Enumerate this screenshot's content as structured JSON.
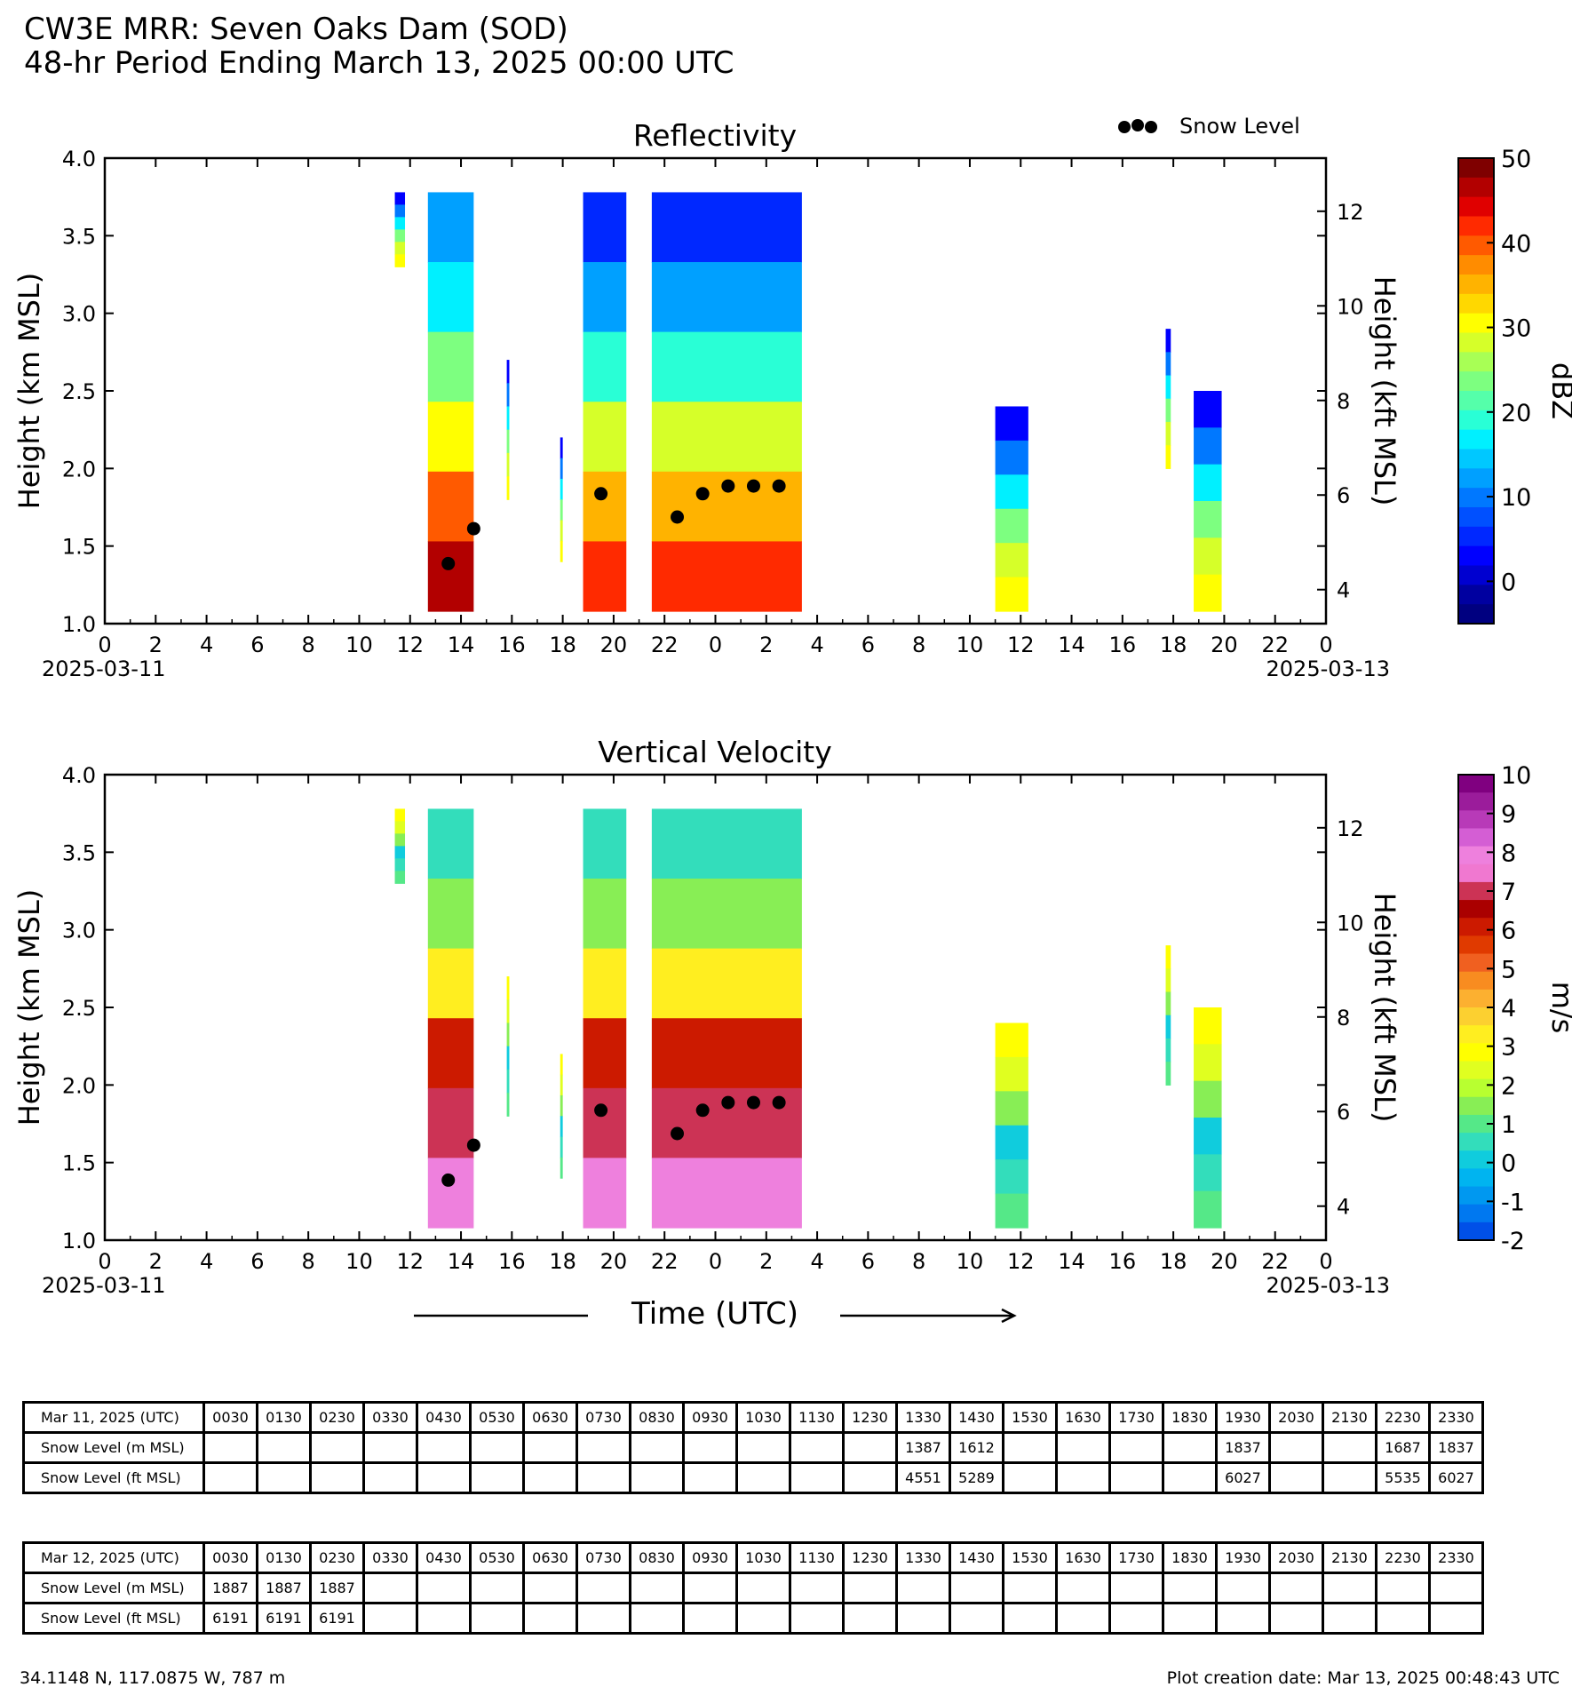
{
  "header": {
    "title_line1": "CW3E MRR: Seven Oaks Dam (SOD)",
    "title_line2": "48-hr Period Ending March 13, 2025 00:00 UTC"
  },
  "legend": {
    "snow_level_label": "Snow Level"
  },
  "x_axis": {
    "tick_labels": [
      "0",
      "2",
      "4",
      "6",
      "8",
      "10",
      "12",
      "14",
      "16",
      "18",
      "20",
      "22",
      "0",
      "2",
      "4",
      "6",
      "8",
      "10",
      "12",
      "14",
      "16",
      "18",
      "20",
      "22",
      "0"
    ],
    "start_date": "2025-03-11",
    "end_date": "2025-03-13",
    "label": "Time (UTC)"
  },
  "left_axis": {
    "label": "Height (km MSL)",
    "ticks": [
      "1.0",
      "1.5",
      "2.0",
      "2.5",
      "3.0",
      "3.5",
      "4.0"
    ]
  },
  "right_axis": {
    "label": "Height (kft MSL)",
    "ticks": [
      "4",
      "6",
      "8",
      "10",
      "12"
    ]
  },
  "colors": {
    "snow_dots": "#000000",
    "background": "#ffffff"
  },
  "chart_data": [
    {
      "type": "heatmap",
      "title": "Reflectivity",
      "ylabel": "Height (km MSL)",
      "ylabel_right": "Height (kft MSL)",
      "xlabel": "Time (UTC)",
      "ylim": [
        1.0,
        4.0
      ],
      "xlim_hours": [
        0,
        48
      ],
      "colorbar": {
        "label": "dBZ",
        "range": [
          -5,
          50
        ],
        "tick_labels": [
          "50",
          "40",
          "30",
          "20",
          "10",
          "0"
        ],
        "tick_values": [
          50,
          40,
          30,
          20,
          10,
          0
        ],
        "colors": [
          "#7f0000",
          "#b20000",
          "#e00000",
          "#ff2a00",
          "#ff5a00",
          "#ff8c00",
          "#ffb300",
          "#ffd800",
          "#ffff00",
          "#d6ff29",
          "#a8ff55",
          "#7dff80",
          "#55ffaa",
          "#29ffd6",
          "#00f0ff",
          "#00c8ff",
          "#00a0ff",
          "#0078ff",
          "#0050ff",
          "#0028ff",
          "#0000ff",
          "#0000d0",
          "#0000a0",
          "#000080"
        ]
      },
      "echo_regions": [
        {
          "t_start": 11.4,
          "t_end": 11.8,
          "top_km": 3.78,
          "bottom_km": 3.3,
          "intensity": "low"
        },
        {
          "t_start": 12.7,
          "t_end": 14.5,
          "top_km": 3.78,
          "bottom_km": 1.08,
          "intensity": "high"
        },
        {
          "t_start": 15.8,
          "t_end": 15.9,
          "top_km": 2.7,
          "bottom_km": 1.8,
          "intensity": "low"
        },
        {
          "t_start": 17.9,
          "t_end": 18.0,
          "top_km": 2.2,
          "bottom_km": 1.4,
          "intensity": "low"
        },
        {
          "t_start": 18.8,
          "t_end": 20.5,
          "top_km": 3.78,
          "bottom_km": 1.08,
          "intensity": "medium"
        },
        {
          "t_start": 21.5,
          "t_end": 27.4,
          "top_km": 3.78,
          "bottom_km": 1.08,
          "intensity": "medium"
        },
        {
          "t_start": 35.0,
          "t_end": 36.3,
          "top_km": 2.4,
          "bottom_km": 1.08,
          "intensity": "low"
        },
        {
          "t_start": 41.7,
          "t_end": 41.9,
          "top_km": 2.9,
          "bottom_km": 2.0,
          "intensity": "low"
        },
        {
          "t_start": 42.8,
          "t_end": 43.9,
          "top_km": 2.5,
          "bottom_km": 1.08,
          "intensity": "low"
        }
      ]
    },
    {
      "type": "heatmap",
      "title": "Vertical Velocity",
      "ylabel": "Height (km MSL)",
      "ylabel_right": "Height (kft MSL)",
      "xlabel": "Time (UTC)",
      "ylim": [
        1.0,
        4.0
      ],
      "xlim_hours": [
        0,
        48
      ],
      "colorbar": {
        "label": "m/s",
        "range": [
          -2,
          10
        ],
        "tick_labels": [
          "10",
          "9",
          "8",
          "7",
          "6",
          "5",
          "4",
          "3",
          "2",
          "1",
          "0",
          "-1",
          "-2"
        ],
        "tick_values": [
          10,
          9,
          8,
          7,
          6,
          5,
          4,
          3,
          2,
          1,
          0,
          -1,
          -2
        ],
        "colors": [
          "#800080",
          "#9b1c9b",
          "#b83ab8",
          "#d45ed4",
          "#ee80dd",
          "#f078d0",
          "#cc3355",
          "#aa0000",
          "#cc1a00",
          "#e03a00",
          "#f06020",
          "#f88c20",
          "#fcb030",
          "#fcd030",
          "#ffee20",
          "#ffff00",
          "#e0ff20",
          "#b8ff30",
          "#88ee55",
          "#55e888",
          "#33ddbb",
          "#10ccdd",
          "#00b4f0",
          "#0098f0",
          "#0078f0",
          "#0050e8"
        ]
      },
      "echo_regions": [
        {
          "t_start": 11.4,
          "t_end": 11.8,
          "top_km": 3.78,
          "bottom_km": 3.3,
          "intensity": "low"
        },
        {
          "t_start": 12.7,
          "t_end": 14.5,
          "top_km": 3.78,
          "bottom_km": 1.08,
          "intensity": "high"
        },
        {
          "t_start": 15.8,
          "t_end": 15.9,
          "top_km": 2.7,
          "bottom_km": 1.8,
          "intensity": "low"
        },
        {
          "t_start": 17.9,
          "t_end": 18.0,
          "top_km": 2.2,
          "bottom_km": 1.4,
          "intensity": "low"
        },
        {
          "t_start": 18.8,
          "t_end": 20.5,
          "top_km": 3.78,
          "bottom_km": 1.08,
          "intensity": "high"
        },
        {
          "t_start": 21.5,
          "t_end": 27.4,
          "top_km": 3.78,
          "bottom_km": 1.08,
          "intensity": "high"
        },
        {
          "t_start": 35.0,
          "t_end": 36.3,
          "top_km": 2.4,
          "bottom_km": 1.08,
          "intensity": "low"
        },
        {
          "t_start": 41.7,
          "t_end": 41.9,
          "top_km": 2.9,
          "bottom_km": 2.0,
          "intensity": "low"
        },
        {
          "t_start": 42.8,
          "t_end": 43.9,
          "top_km": 2.5,
          "bottom_km": 1.08,
          "intensity": "low"
        }
      ]
    }
  ],
  "snow_level_points": [
    {
      "hour": 13.5,
      "km": 1.387
    },
    {
      "hour": 14.5,
      "km": 1.612
    },
    {
      "hour": 19.5,
      "km": 1.837
    },
    {
      "hour": 22.5,
      "km": 1.687
    },
    {
      "hour": 23.5,
      "km": 1.837
    },
    {
      "hour": 24.5,
      "km": 1.887
    },
    {
      "hour": 25.5,
      "km": 1.887
    },
    {
      "hour": 26.5,
      "km": 1.887
    }
  ],
  "tables": [
    {
      "header_label": "Mar 11, 2025 (UTC)",
      "times": [
        "0030",
        "0130",
        "0230",
        "0330",
        "0430",
        "0530",
        "0630",
        "0730",
        "0830",
        "0930",
        "1030",
        "1130",
        "1230",
        "1330",
        "1430",
        "1530",
        "1630",
        "1730",
        "1830",
        "1930",
        "2030",
        "2130",
        "2230",
        "2330"
      ],
      "rows": [
        {
          "label": "Snow Level (m MSL)",
          "values": [
            "",
            "",
            "",
            "",
            "",
            "",
            "",
            "",
            "",
            "",
            "",
            "",
            "",
            "1387",
            "1612",
            "",
            "",
            "",
            "",
            "1837",
            "",
            "",
            "1687",
            "1837"
          ]
        },
        {
          "label": "Snow Level (ft MSL)",
          "values": [
            "",
            "",
            "",
            "",
            "",
            "",
            "",
            "",
            "",
            "",
            "",
            "",
            "",
            "4551",
            "5289",
            "",
            "",
            "",
            "",
            "6027",
            "",
            "",
            "5535",
            "6027"
          ]
        }
      ]
    },
    {
      "header_label": "Mar 12, 2025 (UTC)",
      "times": [
        "0030",
        "0130",
        "0230",
        "0330",
        "0430",
        "0530",
        "0630",
        "0730",
        "0830",
        "0930",
        "1030",
        "1130",
        "1230",
        "1330",
        "1430",
        "1530",
        "1630",
        "1730",
        "1830",
        "1930",
        "2030",
        "2130",
        "2230",
        "2330"
      ],
      "rows": [
        {
          "label": "Snow Level (m MSL)",
          "values": [
            "1887",
            "1887",
            "1887",
            "",
            "",
            "",
            "",
            "",
            "",
            "",
            "",
            "",
            "",
            "",
            "",
            "",
            "",
            "",
            "",
            "",
            "",
            "",
            "",
            ""
          ]
        },
        {
          "label": "Snow Level (ft MSL)",
          "values": [
            "6191",
            "6191",
            "6191",
            "",
            "",
            "",
            "",
            "",
            "",
            "",
            "",
            "",
            "",
            "",
            "",
            "",
            "",
            "",
            "",
            "",
            "",
            "",
            "",
            ""
          ]
        }
      ]
    }
  ],
  "footer": {
    "location": "34.1148 N, 117.0875 W, 787 m",
    "creation_date": "Plot creation date: Mar 13, 2025 00:48:43 UTC"
  }
}
